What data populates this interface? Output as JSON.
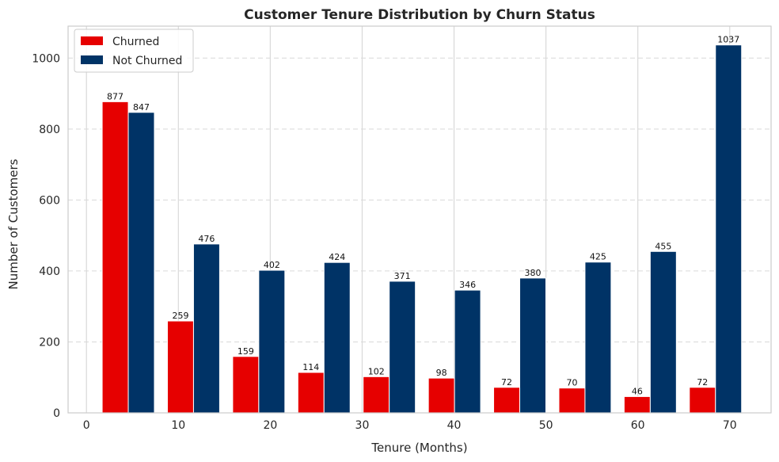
{
  "chart_data": {
    "type": "bar",
    "title": "Customer Tenure Distribution by Churn Status",
    "xlabel": "Tenure (Months)",
    "ylabel": "Number of Customers",
    "xlim": [
      -2,
      74.5
    ],
    "ylim": [
      0,
      1090
    ],
    "xticks": [
      0,
      10,
      20,
      30,
      40,
      50,
      60,
      70
    ],
    "yticks": [
      0,
      200,
      400,
      600,
      800,
      1000
    ],
    "bin_start": 1,
    "bin_width": 7.1,
    "categories": [
      "1.0–8.1",
      "8.1–15.2",
      "15.2–22.3",
      "22.3–29.4",
      "29.4–36.5",
      "36.5–43.6",
      "43.6–50.7",
      "50.7–57.8",
      "57.8–64.9",
      "64.9–72.0"
    ],
    "series": [
      {
        "name": "Churned",
        "color": "#e60000",
        "values": [
          877,
          259,
          159,
          114,
          102,
          98,
          72,
          70,
          46,
          72
        ]
      },
      {
        "name": "Not Churned",
        "color": "#003366",
        "values": [
          847,
          476,
          402,
          424,
          371,
          346,
          380,
          425,
          455,
          1037
        ]
      }
    ],
    "legend": {
      "position": "top-left"
    },
    "grid": {
      "x": "solid",
      "y": "dashed"
    }
  }
}
